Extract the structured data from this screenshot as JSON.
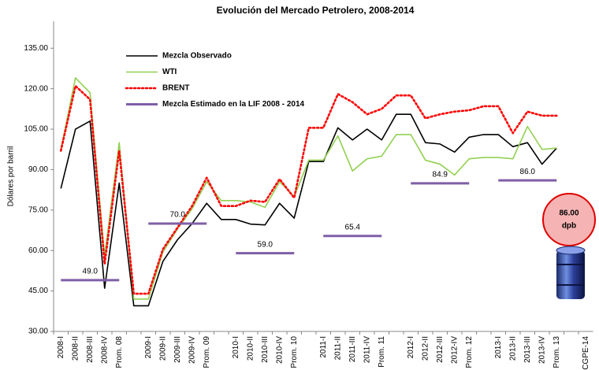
{
  "chart_data": {
    "type": "line",
    "title": "Evolución del Mercado Petrolero, 2008-2014",
    "y_label": "Dólares por barril",
    "categories": [
      "2008-I",
      "2008-II",
      "2008-III",
      "2008-IV",
      "Prom. 08",
      null,
      "2009-I",
      "2009-II",
      "2009-III",
      "2009-IV",
      "Prom. 09",
      null,
      "2010-I",
      "2010-II",
      "2010-III",
      "2010-IV",
      "Prom. 10",
      null,
      "2011-I",
      "2011-II",
      "2011-III",
      "2011-IV",
      "Prom. 11",
      null,
      "2012-I",
      "2012-II",
      "2012-III",
      "2012-IV",
      "Prom. 12",
      null,
      "2013-I",
      "2013-II",
      "2013-III",
      "2013-IV",
      "Prom. 13",
      null,
      "CGPE-14"
    ],
    "ylim": [
      30,
      145
    ],
    "yticks": [
      {
        "value": 30,
        "label": "30.00"
      },
      {
        "value": 45,
        "label": "45.00"
      },
      {
        "value": 60,
        "label": "60.00"
      },
      {
        "value": 75,
        "label": "75.00"
      },
      {
        "value": 90,
        "label": "90.00"
      },
      {
        "value": 105,
        "label": "105.00"
      },
      {
        "value": 120,
        "label": "120.00"
      },
      {
        "value": 135,
        "label": "135.00"
      }
    ],
    "grid": false,
    "legend": "top-left",
    "series": [
      {
        "name": "Mezcla Observado",
        "color": "#000000",
        "line_style": "solid",
        "values": [
          83,
          105,
          108,
          46,
          85,
          39.5,
          39.5,
          56,
          64,
          70,
          77.5,
          71.5,
          71.5,
          69.8,
          69.5,
          77.5,
          72,
          93,
          93,
          105.5,
          101,
          105,
          101,
          110.5,
          110.5,
          100,
          99.5,
          96.5,
          102,
          103,
          103,
          98.5,
          100,
          92,
          98,
          null,
          null
        ]
      },
      {
        "name": "WTI",
        "color": "#92d050",
        "line_style": "solid",
        "values": [
          97.5,
          124,
          118.5,
          58,
          100,
          42,
          42,
          59.5,
          68,
          75.5,
          85.5,
          78.5,
          78.5,
          78,
          76,
          85.5,
          80,
          93.5,
          93.5,
          102.5,
          89.5,
          94,
          95,
          103,
          103,
          93.5,
          92,
          88,
          94,
          94.5,
          94.5,
          94,
          106,
          97.5,
          98,
          null,
          null
        ]
      },
      {
        "name": "BRENT",
        "color": "#ff0000",
        "line_style": "dotted",
        "values": [
          97,
          121,
          116,
          55,
          97,
          44,
          44,
          60.5,
          68.5,
          76.5,
          87,
          76.5,
          76.5,
          78.5,
          78,
          86.5,
          79.5,
          105.5,
          105.5,
          118,
          115,
          110.5,
          112.5,
          117.5,
          117.5,
          109,
          110.5,
          111.5,
          112,
          113.5,
          113.5,
          103.5,
          111.5,
          110,
          110,
          null,
          null
        ]
      },
      {
        "name": "Mezcla Estimado en la LIF 2008 - 2014",
        "color": "#7f5fa7",
        "line_style": "thick",
        "values": [
          49,
          49,
          49,
          49,
          49,
          null,
          70,
          70,
          70,
          70,
          70,
          null,
          59,
          59,
          59,
          59,
          59,
          null,
          65.4,
          65.4,
          65.4,
          65.4,
          65.4,
          null,
          84.9,
          84.9,
          84.9,
          84.9,
          84.9,
          null,
          86,
          86,
          86,
          86,
          86,
          null,
          null
        ],
        "value_labels": [
          null,
          null,
          "49.0",
          null,
          null,
          null,
          null,
          null,
          "70.0",
          null,
          null,
          null,
          null,
          null,
          "59.0",
          null,
          null,
          null,
          null,
          null,
          "65.4",
          null,
          null,
          null,
          null,
          null,
          "84.9",
          null,
          null,
          null,
          null,
          null,
          "86.0",
          null,
          null,
          null,
          null
        ]
      }
    ],
    "annotation": {
      "text": "86.00",
      "unit": "dpb"
    }
  }
}
